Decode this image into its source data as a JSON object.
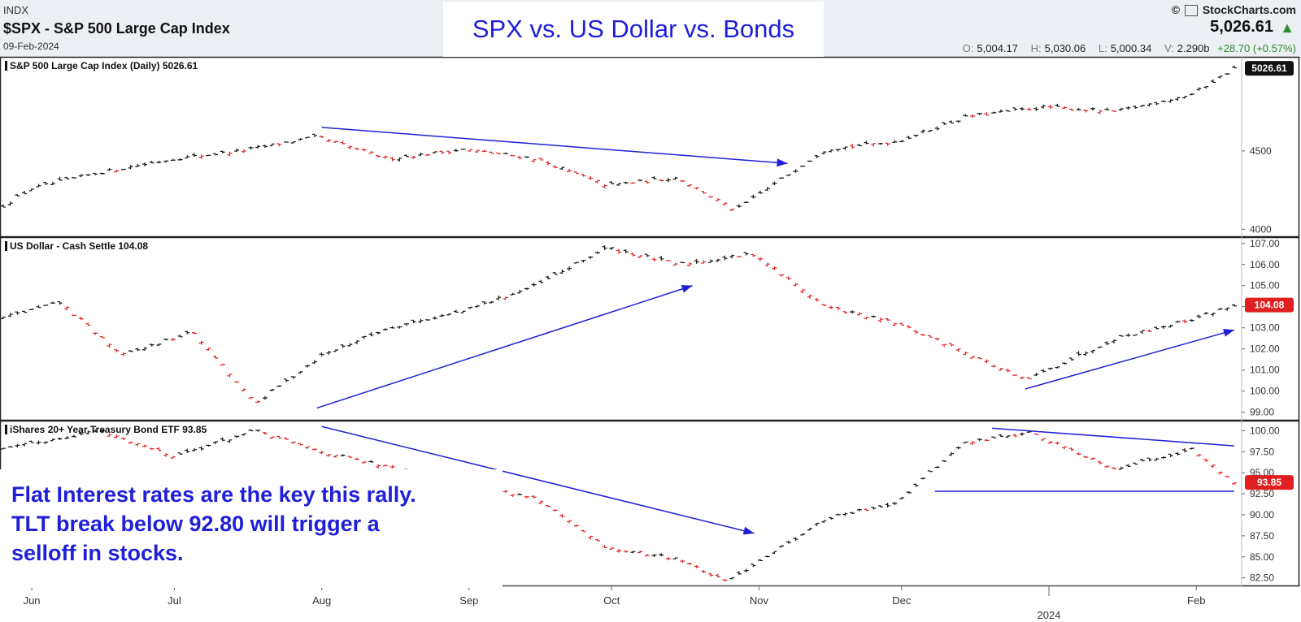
{
  "header": {
    "exchange": "INDX",
    "symbol_title": "$SPX - S&P 500 Large Cap Index",
    "date": "09-Feb-2024",
    "logo_text": "StockCharts.com",
    "last_price": "5,026.61",
    "ohlc": {
      "open_label": "O:",
      "open": "5,004.17",
      "high_label": "H:",
      "high": "5,030.06",
      "low_label": "L:",
      "low": "5,000.34",
      "volume_label": "V:",
      "volume": "2.290b",
      "change": "+28.70 (+0.57%)"
    }
  },
  "annotations": {
    "title": "SPX vs. US Dollar vs. Bonds",
    "note_lines": [
      "Flat Interest rates are the key this rally.",
      "TLT break below 92.80 will trigger a",
      "selloff in stocks."
    ]
  },
  "colors": {
    "up_bar": "#111111",
    "down_bar": "#e02020",
    "trendline": "#1f1fd8",
    "price_tag_black": "#111111",
    "price_tag_red": "#e02020"
  },
  "chart_data": [
    {
      "type": "line",
      "title": "S&P 500 Large Cap Index (Daily) 5026.61",
      "last_value_tag": "5026.61",
      "yticks": [
        "4500",
        "4000"
      ],
      "ylim": [
        3950,
        5100
      ],
      "x": [
        "2023-05-26",
        "2023-06-01",
        "2023-06-15",
        "2023-07-01",
        "2023-07-15",
        "2023-07-31",
        "2023-08-15",
        "2023-08-31",
        "2023-09-15",
        "2023-09-30",
        "2023-10-15",
        "2023-10-27",
        "2023-11-15",
        "2023-11-30",
        "2023-12-15",
        "2023-12-31",
        "2024-01-15",
        "2024-01-31",
        "2024-02-09"
      ],
      "values": [
        4150,
        4260,
        4360,
        4450,
        4500,
        4590,
        4450,
        4510,
        4450,
        4280,
        4330,
        4120,
        4510,
        4560,
        4720,
        4780,
        4750,
        4860,
        5026
      ],
      "trendlines": [
        {
          "from": [
            "2023-08-01",
            4650
          ],
          "to": [
            "2023-11-07",
            4420
          ]
        }
      ]
    },
    {
      "type": "line",
      "title": "US Dollar - Cash Settle 104.08",
      "last_value_tag": "104.08",
      "yticks": [
        "107.00",
        "106.00",
        "105.00",
        "104.00",
        "103.00",
        "102.00",
        "101.00",
        "100.00",
        "99.00"
      ],
      "ylim": [
        98.6,
        107.3
      ],
      "x": [
        "2023-05-26",
        "2023-06-07",
        "2023-06-20",
        "2023-07-05",
        "2023-07-18",
        "2023-08-01",
        "2023-08-15",
        "2023-08-31",
        "2023-09-15",
        "2023-09-30",
        "2023-10-15",
        "2023-10-31",
        "2023-11-15",
        "2023-11-30",
        "2023-12-15",
        "2023-12-27",
        "2024-01-15",
        "2024-01-31",
        "2024-02-09"
      ],
      "values": [
        103.5,
        104.2,
        101.7,
        102.8,
        99.4,
        101.7,
        103.0,
        103.8,
        105.0,
        106.8,
        106.0,
        106.5,
        104.0,
        103.2,
        101.8,
        100.5,
        102.5,
        103.4,
        104.08
      ],
      "trendlines": [
        {
          "from": [
            "2023-07-31",
            99.2
          ],
          "to": [
            "2023-10-18",
            105.0
          ]
        },
        {
          "from": [
            "2023-12-27",
            100.1
          ],
          "to": [
            "2024-02-09",
            102.9
          ]
        }
      ]
    },
    {
      "type": "line",
      "title": "iShares 20+ Year Treasury Bond ETF 93.85",
      "last_value_tag": "93.85",
      "yticks": [
        "100.00",
        "97.50",
        "95.00",
        "92.50",
        "90.00",
        "87.50",
        "85.00",
        "82.50"
      ],
      "ylim": [
        81.5,
        101.2
      ],
      "x": [
        "2023-05-26",
        "2023-06-15",
        "2023-07-01",
        "2023-07-18",
        "2023-08-01",
        "2023-08-20",
        "2023-09-15",
        "2023-09-30",
        "2023-10-15",
        "2023-10-25",
        "2023-11-15",
        "2023-11-30",
        "2023-12-14",
        "2023-12-28",
        "2024-01-15",
        "2024-01-31",
        "2024-02-09"
      ],
      "values": [
        97.8,
        100.0,
        97.0,
        100.0,
        97.5,
        95.0,
        92.0,
        86.0,
        84.8,
        82.0,
        89.5,
        91.5,
        98.5,
        99.8,
        95.5,
        97.8,
        93.85
      ],
      "trendlines": [
        {
          "from": [
            "2023-08-01",
            100.5
          ],
          "to": [
            "2023-10-31",
            87.8
          ]
        },
        {
          "from": [
            "2023-12-20",
            100.3
          ],
          "to": [
            "2024-02-09",
            98.2
          ]
        },
        {
          "from": [
            "2023-12-08",
            92.8
          ],
          "to": [
            "2024-02-09",
            92.8
          ]
        }
      ]
    }
  ],
  "x_axis": {
    "labels": [
      {
        "text": "Jun",
        "date": "2023-06-01"
      },
      {
        "text": "Jul",
        "date": "2023-07-01"
      },
      {
        "text": "Aug",
        "date": "2023-08-01"
      },
      {
        "text": "Sep",
        "date": "2023-09-01"
      },
      {
        "text": "Oct",
        "date": "2023-10-01"
      },
      {
        "text": "Nov",
        "date": "2023-11-01"
      },
      {
        "text": "Dec",
        "date": "2023-12-01"
      },
      {
        "text": "Feb",
        "date": "2024-02-01"
      }
    ],
    "year_label": {
      "text": "2024",
      "date": "2024-01-01"
    }
  }
}
